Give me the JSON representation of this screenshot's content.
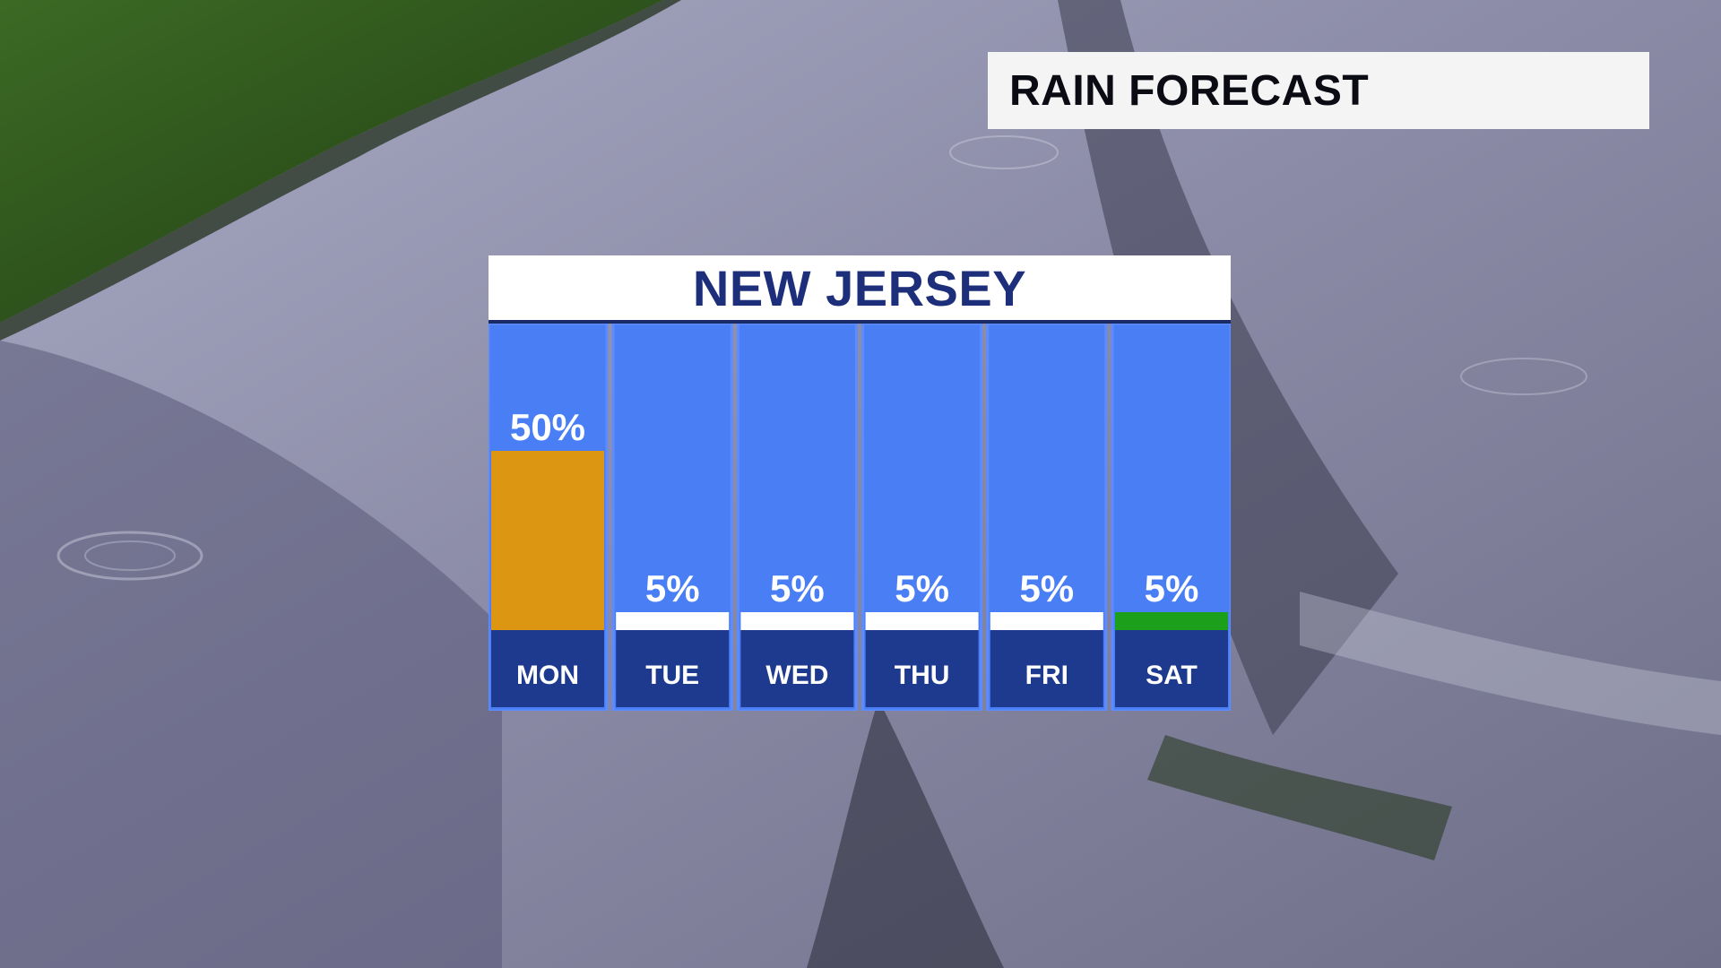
{
  "title": "RAIN FORECAST",
  "colors": {
    "column_bg": "#4a7ef5",
    "column_border": "#5c8cff",
    "day_band": "#1e3a8e",
    "default_bar": "#ffffff",
    "header_text": "#1d2f7a"
  },
  "chart_data": {
    "type": "bar",
    "title": "NEW JERSEY",
    "categories": [
      "MON",
      "TUE",
      "WED",
      "THU",
      "FRI",
      "SAT"
    ],
    "values": [
      50,
      5,
      5,
      5,
      5,
      5
    ],
    "labels": [
      "50%",
      "5%",
      "5%",
      "5%",
      "5%",
      "5%"
    ],
    "bar_colors": [
      "#dc9612",
      "#ffffff",
      "#ffffff",
      "#ffffff",
      "#ffffff",
      "#1ca01c"
    ],
    "unit": "%",
    "ylim": [
      0,
      100
    ],
    "grid": false,
    "xlabel": "",
    "ylabel": ""
  }
}
